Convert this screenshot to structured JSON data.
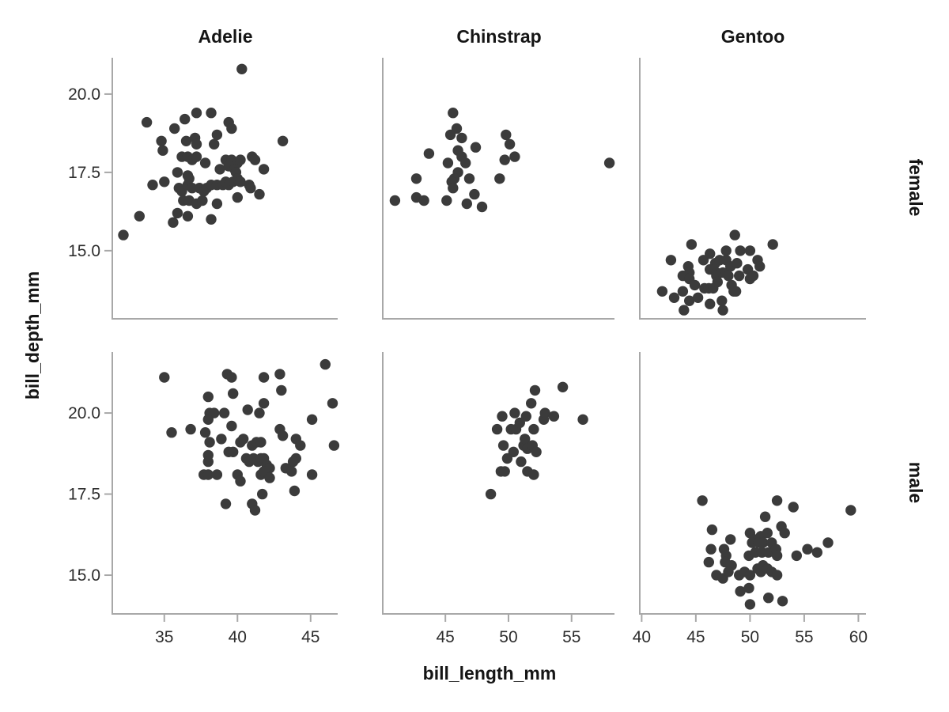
{
  "figure": {
    "x_axis_title": "bill_length_mm",
    "y_axis_title": "bill_depth_mm"
  },
  "chart_data": {
    "type": "scatter",
    "title": "",
    "xlabel": "bill_length_mm",
    "ylabel": "bill_depth_mm",
    "legend": "none",
    "grid": "off",
    "facet_col_labels": [
      "Adelie",
      "Chinstrap",
      "Gentoo"
    ],
    "facet_row_labels": [
      "female",
      "male"
    ],
    "point_color": "#3b3b3b",
    "axis_color": "#a8a8a8",
    "tick_label_color": "#2e2e2e",
    "x_scales": [
      {
        "ticks": [
          35,
          40,
          45
        ],
        "range": [
          31.5,
          46.85
        ]
      },
      {
        "ticks": [
          45,
          50,
          55
        ],
        "range": [
          40.1,
          58.4
        ]
      },
      {
        "ticks": [
          40,
          45,
          50,
          55,
          60
        ],
        "range": [
          39.9,
          60.7
        ]
      }
    ],
    "y_scales": [
      {
        "ticks": [
          15.0,
          17.5,
          20.0
        ],
        "tick_labels": [
          "15.0",
          "17.5",
          "20.0"
        ],
        "range": [
          12.85,
          21.16
        ]
      },
      {
        "ticks": [
          15.0,
          17.5,
          20.0
        ],
        "tick_labels": [
          "15.0",
          "17.5",
          "20.0"
        ],
        "range": [
          13.83,
          21.88
        ]
      }
    ],
    "panels": [
      {
        "species": "Adelie",
        "sex": "female",
        "points": [
          [
            40.3,
            20.8
          ],
          [
            33.8,
            19.1
          ],
          [
            35.7,
            18.9
          ],
          [
            36.4,
            19.2
          ],
          [
            37.2,
            19.4
          ],
          [
            38.2,
            19.4
          ],
          [
            39.4,
            19.1
          ],
          [
            39.6,
            18.9
          ],
          [
            34.8,
            18.5
          ],
          [
            34.9,
            18.2
          ],
          [
            36.5,
            18.5
          ],
          [
            37.1,
            18.6
          ],
          [
            37.2,
            18.4
          ],
          [
            38.6,
            18.7
          ],
          [
            38.4,
            18.4
          ],
          [
            43.1,
            18.5
          ],
          [
            36.2,
            18.0
          ],
          [
            36.6,
            18.0
          ],
          [
            36.9,
            17.9
          ],
          [
            37.2,
            18.0
          ],
          [
            37.8,
            17.8
          ],
          [
            39.2,
            17.9
          ],
          [
            39.6,
            17.9
          ],
          [
            40.0,
            17.8
          ],
          [
            40.2,
            17.9
          ],
          [
            41.0,
            18.0
          ],
          [
            41.2,
            17.9
          ],
          [
            38.8,
            17.6
          ],
          [
            39.4,
            17.7
          ],
          [
            39.8,
            17.6
          ],
          [
            39.9,
            17.5
          ],
          [
            41.8,
            17.6
          ],
          [
            35.9,
            17.5
          ],
          [
            36.6,
            17.4
          ],
          [
            36.7,
            17.3
          ],
          [
            34.2,
            17.1
          ],
          [
            35.0,
            17.2
          ],
          [
            36.0,
            17.0
          ],
          [
            36.2,
            16.9
          ],
          [
            36.6,
            17.1
          ],
          [
            36.9,
            17.0
          ],
          [
            37.4,
            17.0
          ],
          [
            37.7,
            16.9
          ],
          [
            37.9,
            17.0
          ],
          [
            38.2,
            17.1
          ],
          [
            38.6,
            17.1
          ],
          [
            39.0,
            17.1
          ],
          [
            39.2,
            17.2
          ],
          [
            39.4,
            17.1
          ],
          [
            39.7,
            17.2
          ],
          [
            40.0,
            17.3
          ],
          [
            40.2,
            17.2
          ],
          [
            40.8,
            17.1
          ],
          [
            40.9,
            17.0
          ],
          [
            40.0,
            16.7
          ],
          [
            41.5,
            16.8
          ],
          [
            36.3,
            16.6
          ],
          [
            36.7,
            16.6
          ],
          [
            37.2,
            16.5
          ],
          [
            37.6,
            16.6
          ],
          [
            38.6,
            16.5
          ],
          [
            33.3,
            16.1
          ],
          [
            35.6,
            15.9
          ],
          [
            35.9,
            16.2
          ],
          [
            36.6,
            16.1
          ],
          [
            38.2,
            16.0
          ],
          [
            32.2,
            15.5
          ]
        ]
      },
      {
        "species": "Adelie",
        "sex": "male",
        "points": [
          [
            35.0,
            21.1
          ],
          [
            39.3,
            21.2
          ],
          [
            39.6,
            21.1
          ],
          [
            41.8,
            21.1
          ],
          [
            42.9,
            21.2
          ],
          [
            46.0,
            21.5
          ],
          [
            38.0,
            20.5
          ],
          [
            39.7,
            20.6
          ],
          [
            43.0,
            20.7
          ],
          [
            41.8,
            20.3
          ],
          [
            46.5,
            20.3
          ],
          [
            40.7,
            20.1
          ],
          [
            41.5,
            20.0
          ],
          [
            38.1,
            20.0
          ],
          [
            38.4,
            20.0
          ],
          [
            39.1,
            20.0
          ],
          [
            38.0,
            19.8
          ],
          [
            39.6,
            19.6
          ],
          [
            45.1,
            19.8
          ],
          [
            35.5,
            19.4
          ],
          [
            36.8,
            19.5
          ],
          [
            37.8,
            19.4
          ],
          [
            38.1,
            19.1
          ],
          [
            38.9,
            19.2
          ],
          [
            42.9,
            19.5
          ],
          [
            43.1,
            19.3
          ],
          [
            44.0,
            19.2
          ],
          [
            44.3,
            19.0
          ],
          [
            46.6,
            19.0
          ],
          [
            40.2,
            19.1
          ],
          [
            40.4,
            19.2
          ],
          [
            41.0,
            19.0
          ],
          [
            41.3,
            19.1
          ],
          [
            41.6,
            19.1
          ],
          [
            39.4,
            18.8
          ],
          [
            39.7,
            18.8
          ],
          [
            38.0,
            18.7
          ],
          [
            38.0,
            18.5
          ],
          [
            40.6,
            18.6
          ],
          [
            40.8,
            18.5
          ],
          [
            41.1,
            18.6
          ],
          [
            41.4,
            18.5
          ],
          [
            41.6,
            18.6
          ],
          [
            41.8,
            18.6
          ],
          [
            42.0,
            18.4
          ],
          [
            42.2,
            18.3
          ],
          [
            44.0,
            18.6
          ],
          [
            43.8,
            18.5
          ],
          [
            37.7,
            18.1
          ],
          [
            38.0,
            18.1
          ],
          [
            38.6,
            18.1
          ],
          [
            40.0,
            18.1
          ],
          [
            40.2,
            17.9
          ],
          [
            41.6,
            18.1
          ],
          [
            41.8,
            18.2
          ],
          [
            42.2,
            18.0
          ],
          [
            43.3,
            18.3
          ],
          [
            43.7,
            18.2
          ],
          [
            45.1,
            18.1
          ],
          [
            41.7,
            17.5
          ],
          [
            43.9,
            17.6
          ],
          [
            39.2,
            17.2
          ],
          [
            41.0,
            17.2
          ],
          [
            41.2,
            17.0
          ]
        ]
      },
      {
        "species": "Chinstrap",
        "sex": "female",
        "points": [
          [
            45.6,
            19.4
          ],
          [
            45.9,
            18.9
          ],
          [
            45.4,
            18.7
          ],
          [
            46.3,
            18.6
          ],
          [
            47.4,
            18.3
          ],
          [
            46.0,
            18.2
          ],
          [
            43.7,
            18.1
          ],
          [
            45.2,
            17.8
          ],
          [
            46.3,
            18.0
          ],
          [
            46.6,
            17.8
          ],
          [
            46.0,
            17.5
          ],
          [
            42.7,
            17.3
          ],
          [
            45.7,
            17.3
          ],
          [
            45.5,
            17.2
          ],
          [
            46.9,
            17.3
          ],
          [
            45.6,
            17.0
          ],
          [
            41.0,
            16.6
          ],
          [
            42.7,
            16.7
          ],
          [
            43.3,
            16.6
          ],
          [
            45.1,
            16.6
          ],
          [
            46.7,
            16.5
          ],
          [
            47.3,
            16.8
          ],
          [
            47.9,
            16.4
          ],
          [
            49.8,
            18.7
          ],
          [
            50.1,
            18.4
          ],
          [
            49.7,
            17.9
          ],
          [
            50.5,
            18.0
          ],
          [
            49.3,
            17.3
          ],
          [
            58.0,
            17.8
          ]
        ]
      },
      {
        "species": "Chinstrap",
        "sex": "male",
        "points": [
          [
            52.1,
            20.7
          ],
          [
            54.3,
            20.8
          ],
          [
            51.8,
            20.3
          ],
          [
            49.5,
            19.9
          ],
          [
            50.5,
            20.0
          ],
          [
            51.4,
            19.9
          ],
          [
            52.8,
            19.8
          ],
          [
            52.9,
            20.0
          ],
          [
            53.6,
            19.9
          ],
          [
            55.9,
            19.8
          ],
          [
            49.1,
            19.5
          ],
          [
            50.2,
            19.5
          ],
          [
            50.6,
            19.5
          ],
          [
            50.9,
            19.7
          ],
          [
            52.0,
            19.5
          ],
          [
            49.6,
            19.0
          ],
          [
            50.4,
            18.8
          ],
          [
            51.2,
            19.0
          ],
          [
            51.3,
            19.2
          ],
          [
            51.5,
            18.9
          ],
          [
            51.9,
            19.0
          ],
          [
            52.2,
            18.8
          ],
          [
            49.9,
            18.6
          ],
          [
            51.0,
            18.5
          ],
          [
            51.5,
            18.2
          ],
          [
            49.4,
            18.2
          ],
          [
            49.7,
            18.2
          ],
          [
            52.0,
            18.1
          ],
          [
            48.6,
            17.5
          ]
        ]
      },
      {
        "species": "Gentoo",
        "sex": "female",
        "points": [
          [
            48.6,
            15.5
          ],
          [
            44.6,
            15.2
          ],
          [
            47.8,
            15.0
          ],
          [
            49.1,
            15.0
          ],
          [
            50.0,
            15.0
          ],
          [
            52.1,
            15.2
          ],
          [
            42.7,
            14.7
          ],
          [
            45.7,
            14.7
          ],
          [
            46.3,
            14.9
          ],
          [
            46.8,
            14.6
          ],
          [
            47.2,
            14.7
          ],
          [
            47.8,
            14.7
          ],
          [
            48.2,
            14.5
          ],
          [
            48.8,
            14.6
          ],
          [
            50.7,
            14.7
          ],
          [
            50.9,
            14.5
          ],
          [
            44.3,
            14.5
          ],
          [
            44.4,
            14.3
          ],
          [
            43.8,
            14.2
          ],
          [
            44.4,
            14.1
          ],
          [
            46.3,
            14.4
          ],
          [
            46.9,
            14.3
          ],
          [
            47.5,
            14.3
          ],
          [
            48.0,
            14.2
          ],
          [
            46.9,
            14.2
          ],
          [
            49.0,
            14.2
          ],
          [
            49.8,
            14.4
          ],
          [
            50.0,
            14.1
          ],
          [
            50.3,
            14.2
          ],
          [
            44.9,
            13.9
          ],
          [
            45.8,
            13.8
          ],
          [
            46.2,
            13.8
          ],
          [
            46.6,
            13.8
          ],
          [
            47.0,
            14.0
          ],
          [
            48.3,
            13.9
          ],
          [
            48.7,
            13.7
          ],
          [
            41.9,
            13.7
          ],
          [
            43.8,
            13.7
          ],
          [
            43.0,
            13.5
          ],
          [
            44.4,
            13.4
          ],
          [
            45.2,
            13.5
          ],
          [
            46.3,
            13.3
          ],
          [
            47.5,
            13.1
          ],
          [
            48.5,
            13.7
          ],
          [
            43.9,
            13.1
          ],
          [
            47.4,
            13.4
          ]
        ]
      },
      {
        "species": "Gentoo",
        "sex": "male",
        "points": [
          [
            45.6,
            17.3
          ],
          [
            52.5,
            17.3
          ],
          [
            54.0,
            17.1
          ],
          [
            59.3,
            17.0
          ],
          [
            51.4,
            16.8
          ],
          [
            46.5,
            16.4
          ],
          [
            52.9,
            16.5
          ],
          [
            53.2,
            16.3
          ],
          [
            50.0,
            16.3
          ],
          [
            48.2,
            16.1
          ],
          [
            50.4,
            16.1
          ],
          [
            51.0,
            16.2
          ],
          [
            51.6,
            16.3
          ],
          [
            50.2,
            16.0
          ],
          [
            50.8,
            16.0
          ],
          [
            51.2,
            16.0
          ],
          [
            52.0,
            16.0
          ],
          [
            46.4,
            15.8
          ],
          [
            47.6,
            15.8
          ],
          [
            47.8,
            15.6
          ],
          [
            46.2,
            15.4
          ],
          [
            47.7,
            15.4
          ],
          [
            48.3,
            15.3
          ],
          [
            49.9,
            15.6
          ],
          [
            50.5,
            15.7
          ],
          [
            51.1,
            15.7
          ],
          [
            51.7,
            15.7
          ],
          [
            52.4,
            15.8
          ],
          [
            52.5,
            15.6
          ],
          [
            54.3,
            15.6
          ],
          [
            55.3,
            15.8
          ],
          [
            56.2,
            15.7
          ],
          [
            57.2,
            16.0
          ],
          [
            46.9,
            15.0
          ],
          [
            47.5,
            14.9
          ],
          [
            48.0,
            15.1
          ],
          [
            49.0,
            15.0
          ],
          [
            49.5,
            15.1
          ],
          [
            50.0,
            15.0
          ],
          [
            50.7,
            15.2
          ],
          [
            51.0,
            15.1
          ],
          [
            51.2,
            15.3
          ],
          [
            51.6,
            15.2
          ],
          [
            52.0,
            15.1
          ],
          [
            52.5,
            15.0
          ],
          [
            49.1,
            14.5
          ],
          [
            49.9,
            14.6
          ],
          [
            51.7,
            14.3
          ],
          [
            53.0,
            14.2
          ],
          [
            50.0,
            14.1
          ]
        ]
      }
    ]
  }
}
